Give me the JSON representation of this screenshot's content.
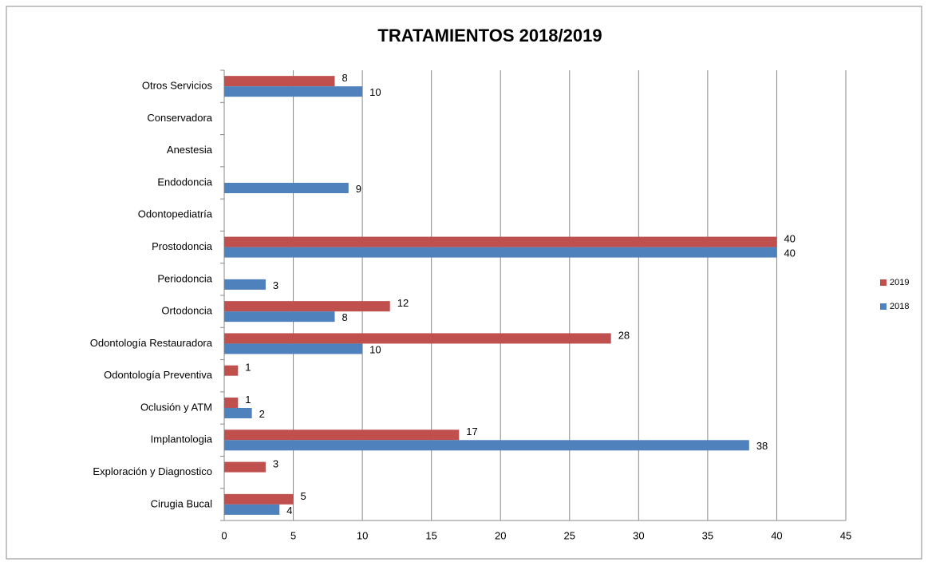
{
  "chart_data": {
    "type": "barh",
    "title": "TRATAMIENTOS 2018/2019",
    "categories": [
      "Cirugia Bucal",
      "Exploración y Diagnostico",
      "Implantologia",
      "Oclusión y ATM",
      "Odontología Preventiva",
      "Odontología Restauradora",
      "Ortodoncia",
      "Periodoncia",
      "Prostodoncia",
      "Odontopediatría",
      "Endodoncia",
      "Anestesia",
      "Conservadora",
      "Otros Servicios"
    ],
    "series": [
      {
        "name": "2019",
        "color": "#c0504d",
        "values": [
          5,
          3,
          17,
          1,
          1,
          28,
          12,
          null,
          40,
          null,
          null,
          null,
          null,
          8
        ]
      },
      {
        "name": "2018",
        "color": "#4f81bd",
        "values": [
          4,
          null,
          38,
          2,
          null,
          10,
          8,
          3,
          40,
          null,
          9,
          null,
          null,
          10
        ]
      }
    ],
    "xlim": [
      0,
      45
    ],
    "xticks": [
      0,
      5,
      10,
      15,
      20,
      25,
      30,
      35,
      40,
      45
    ],
    "grid": true,
    "legend": "right"
  }
}
